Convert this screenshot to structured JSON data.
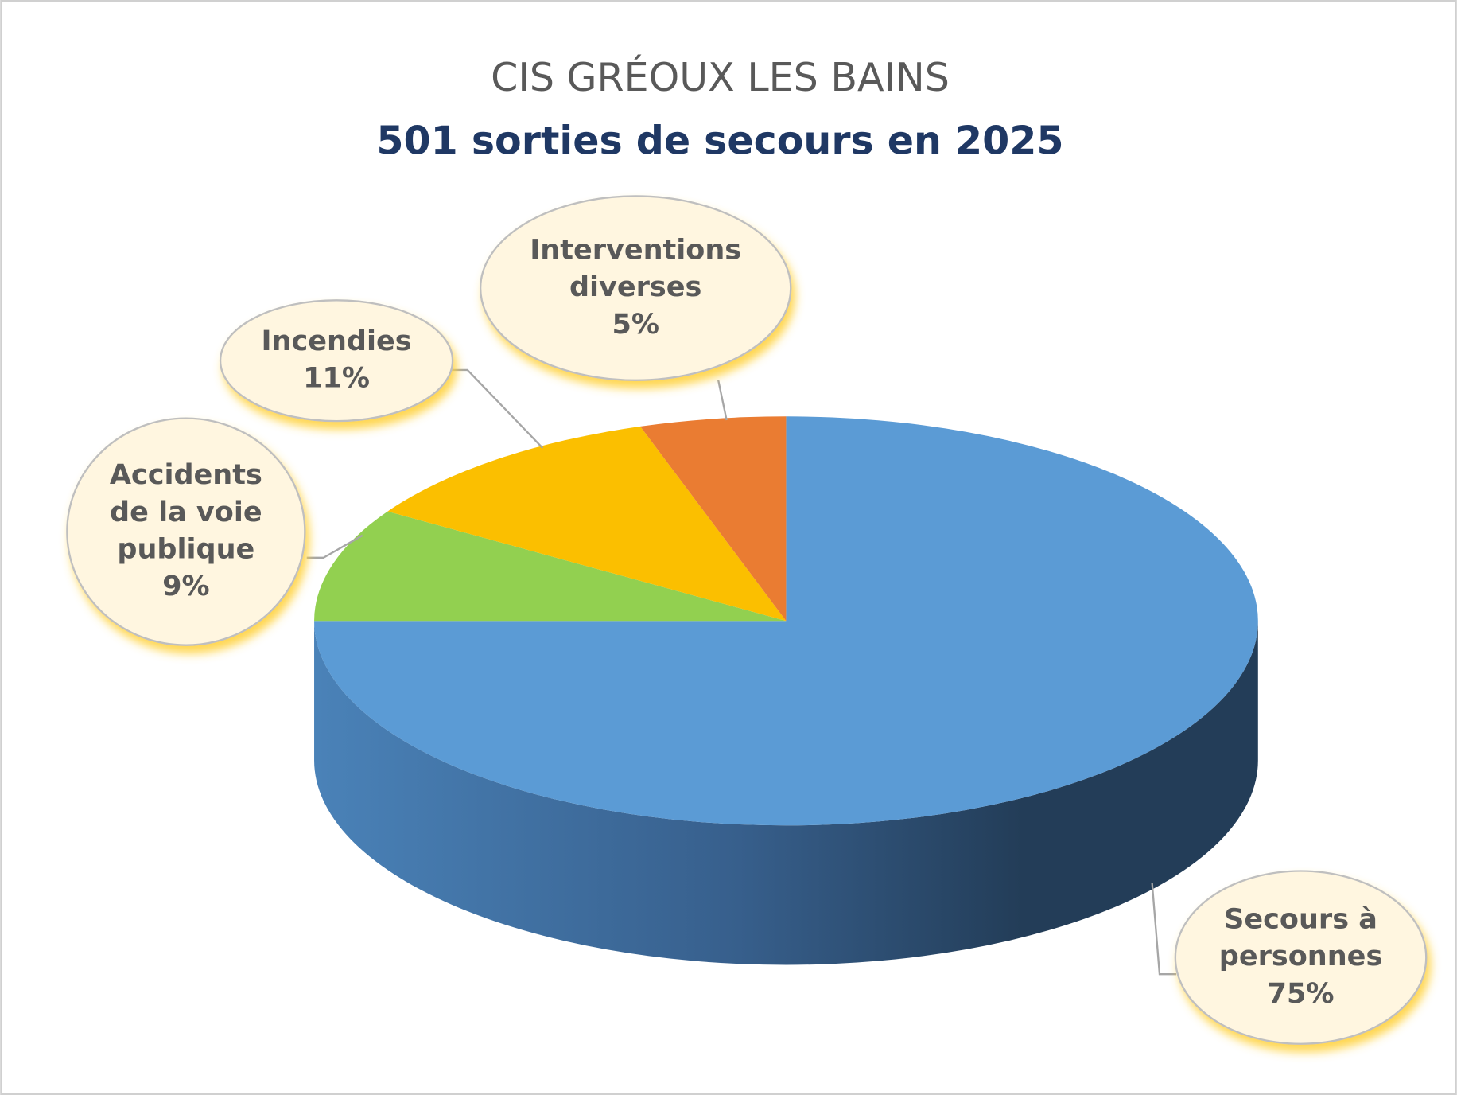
{
  "chart_data": {
    "type": "pie",
    "title": "CIS GRÉOUX LES BAINS",
    "subtitle": "501 sorties de secours en 2025",
    "categories": [
      "Secours à personnes",
      "Accidents de la voie publique",
      "Incendies",
      "Interventions diverses"
    ],
    "values": [
      75,
      9,
      11,
      5
    ],
    "value_labels": [
      "75%",
      "9%",
      "11%",
      "5%"
    ],
    "colors": [
      "#5b9bd5",
      "#92d050",
      "#fbbf00",
      "#ea7c32"
    ]
  }
}
